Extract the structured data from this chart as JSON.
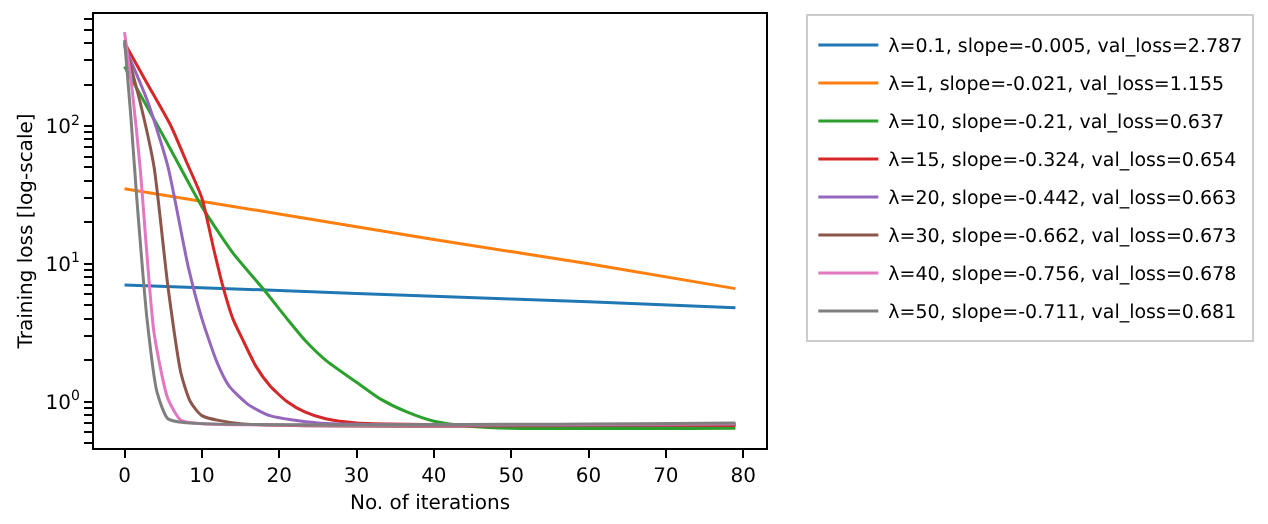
{
  "chart_data": {
    "type": "line",
    "xlabel": "No. of iterations",
    "ylabel": "Training loss [log-scale]",
    "log": "y",
    "legend": "top right",
    "marker": "none",
    "line_style": "solid",
    "xlim": [
      -3.95,
      82.95
    ],
    "xticks": [
      0,
      10,
      20,
      30,
      40,
      50,
      60,
      70,
      80
    ],
    "ylim": [
      0.46,
      650
    ],
    "yticks": [
      {
        "value": 0.5,
        "label": null
      },
      {
        "value": 0.6,
        "label": null
      },
      {
        "value": 0.7,
        "label": null
      },
      {
        "value": 0.8,
        "label": null
      },
      {
        "value": 0.9,
        "label": null
      },
      {
        "value": 1,
        "label": "10$^{0}$"
      },
      {
        "value": 2,
        "label": null
      },
      {
        "value": 3,
        "label": null
      },
      {
        "value": 4,
        "label": null
      },
      {
        "value": 5,
        "label": null
      },
      {
        "value": 6,
        "label": null
      },
      {
        "value": 7,
        "label": null
      },
      {
        "value": 8,
        "label": null
      },
      {
        "value": 9,
        "label": null
      },
      {
        "value": 10,
        "label": "10$^{1}$"
      },
      {
        "value": 20,
        "label": null
      },
      {
        "value": 30,
        "label": null
      },
      {
        "value": 40,
        "label": null
      },
      {
        "value": 50,
        "label": null
      },
      {
        "value": 60,
        "label": null
      },
      {
        "value": 70,
        "label": null
      },
      {
        "value": 80,
        "label": null
      },
      {
        "value": 90,
        "label": null
      },
      {
        "value": 100,
        "label": "10$^{2}$"
      },
      {
        "value": 200,
        "label": null
      },
      {
        "value": 300,
        "label": null
      },
      {
        "value": 400,
        "label": null
      },
      {
        "value": 500,
        "label": null
      },
      {
        "value": 600,
        "label": null
      }
    ],
    "series": [
      {
        "name": "λ=0.1, slope=-0.005, val_loss=2.787",
        "color": "#1f77b4",
        "x": [
          0,
          20,
          40,
          60,
          79
        ],
        "values": [
          7,
          6.4,
          5.8,
          5.3,
          4.8
        ]
      },
      {
        "name": "λ=1, slope=-0.021, val_loss=1.155",
        "color": "#ff7f0e",
        "x": [
          0,
          20,
          40,
          60,
          79
        ],
        "values": [
          35,
          23,
          15,
          10,
          6.6
        ]
      },
      {
        "name": "λ=10, slope=-0.21, val_loss=0.637",
        "color": "#2ca02c",
        "x": [
          0,
          5,
          10,
          14,
          18,
          21,
          23.3,
          26,
          30,
          33,
          36.5,
          40,
          45,
          50,
          79
        ],
        "values": [
          270,
          85,
          26,
          12,
          6.5,
          4,
          2.8,
          2,
          1.38,
          1.05,
          0.84,
          0.72,
          0.66,
          0.64,
          0.64
        ]
      },
      {
        "name": "λ=15, slope=-0.324, val_loss=0.654",
        "color": "#d62728",
        "x": [
          0,
          3,
          6,
          8,
          10,
          11.5,
          12.7,
          14,
          15.3,
          17,
          18.8,
          21,
          23.3,
          26,
          30,
          79
        ],
        "values": [
          400,
          200,
          100,
          55,
          30,
          13,
          6.9,
          4,
          2.8,
          1.8,
          1.3,
          1,
          0.84,
          0.75,
          0.7,
          0.67
        ]
      },
      {
        "name": "λ=20, slope=-0.442, val_loss=0.663",
        "color": "#9467bd",
        "x": [
          0,
          3,
          5.6,
          8.2,
          10,
          12,
          13.5,
          16,
          18.8,
          25,
          79
        ],
        "values": [
          380,
          150,
          51,
          9.7,
          4,
          1.9,
          1.3,
          0.95,
          0.79,
          0.7,
          0.68
        ]
      },
      {
        "name": "λ=30, slope=-0.662, val_loss=0.673",
        "color": "#8c564b",
        "x": [
          0,
          2,
          3.8,
          5.6,
          7.3,
          8.5,
          10,
          15,
          79
        ],
        "values": [
          400,
          150,
          51,
          6.9,
          1.6,
          1.0,
          0.79,
          0.69,
          0.68
        ]
      },
      {
        "name": "λ=40, slope=-0.756, val_loss=0.678",
        "color": "#e377c2",
        "x": [
          0,
          1,
          2,
          3.8,
          5.6,
          7.3,
          10,
          79
        ],
        "values": [
          480,
          180,
          51,
          3.2,
          1.05,
          0.73,
          0.69,
          0.69
        ]
      },
      {
        "name": "λ=50, slope=-0.711, val_loss=0.681",
        "color": "#7f7f7f",
        "x": [
          0,
          0.8,
          1.6,
          2.9,
          4.2,
          5.6,
          8,
          79
        ],
        "values": [
          420,
          120,
          29,
          4,
          1.17,
          0.75,
          0.7,
          0.7
        ]
      }
    ]
  }
}
